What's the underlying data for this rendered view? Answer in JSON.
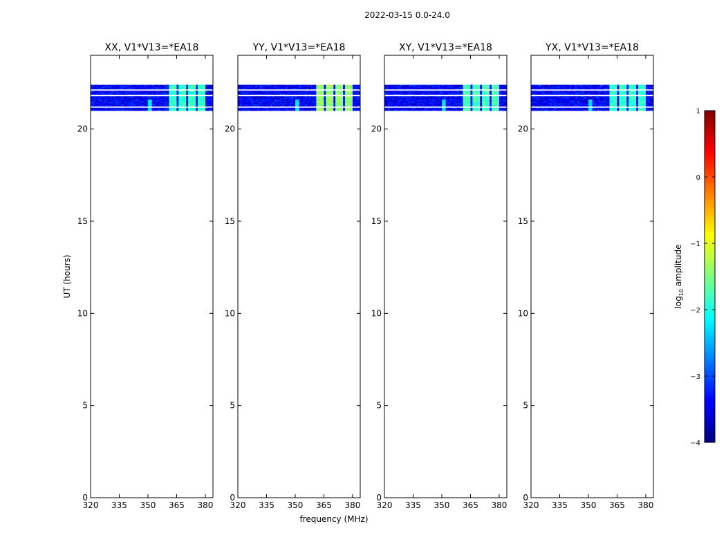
{
  "figure": {
    "suptitle": "2022-03-15 0.0-24.0",
    "ylabel": "UT (hours)",
    "xlabel": "frequency (MHz)"
  },
  "chart_data": {
    "type": "heatmap",
    "x_ticks": [
      320,
      335,
      350,
      365,
      380
    ],
    "xlim": [
      320,
      384
    ],
    "y_ticks": [
      0,
      5,
      10,
      15,
      20
    ],
    "ylim": [
      0,
      24
    ],
    "data_time_range": [
      21.0,
      22.4
    ],
    "panels": [
      {
        "title": "XX, V1*V13=*EA18",
        "bright_channels": [
          [
            361,
            365
          ],
          [
            366,
            370
          ],
          [
            371,
            375
          ],
          [
            376,
            380
          ]
        ],
        "bright_level": -1.9,
        "spike_freqs": [
          351
        ]
      },
      {
        "title": "YY, V1*V13=*EA18",
        "bright_channels": [
          [
            361,
            365
          ],
          [
            366,
            370
          ],
          [
            371,
            375
          ],
          [
            376,
            380
          ]
        ],
        "bright_level": -1.4,
        "spike_freqs": [
          351
        ]
      },
      {
        "title": "XY, V1*V13=*EA18",
        "bright_channels": [
          [
            361,
            365
          ],
          [
            366,
            370
          ],
          [
            371,
            375
          ],
          [
            376,
            380
          ]
        ],
        "bright_level": -1.8,
        "spike_freqs": [
          351
        ]
      },
      {
        "title": "YX, V1*V13=*EA18",
        "bright_channels": [
          [
            361,
            365
          ],
          [
            366,
            370
          ],
          [
            371,
            375
          ],
          [
            376,
            380
          ]
        ],
        "bright_level": -1.9,
        "spike_freqs": [
          351
        ]
      }
    ],
    "colorbar": {
      "label": "log",
      "label_sub": "10",
      "label_suffix": " amplitude",
      "range": [
        -4,
        1
      ],
      "ticks": [
        "1",
        "0",
        "−1",
        "−2",
        "−3",
        "−4"
      ],
      "colormap": "jet"
    }
  }
}
